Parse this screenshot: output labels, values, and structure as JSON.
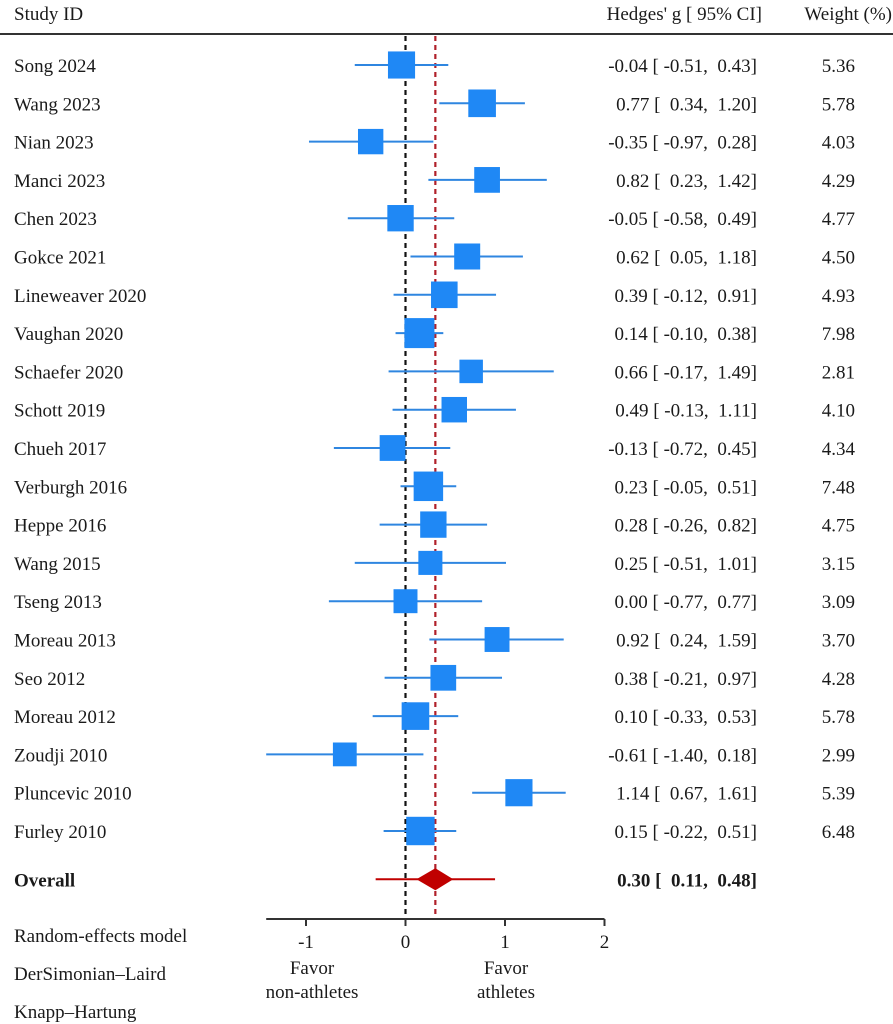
{
  "chart_data": {
    "type": "forest",
    "header": {
      "study": "Study ID",
      "effect": "Hedges' g [ 95% CI]",
      "weight": "Weight (%)"
    },
    "studies": [
      {
        "name": "Song 2024",
        "g": -0.04,
        "lo": -0.51,
        "hi": 0.43,
        "weight": 5.36,
        "label": "-0.04 [ -0.51,  0.43]",
        "weight_label": "5.36"
      },
      {
        "name": "Wang 2023",
        "g": 0.77,
        "lo": 0.34,
        "hi": 1.2,
        "weight": 5.78,
        "label": "0.77 [  0.34,  1.20]",
        "weight_label": "5.78"
      },
      {
        "name": "Nian 2023",
        "g": -0.35,
        "lo": -0.97,
        "hi": 0.28,
        "weight": 4.03,
        "label": "-0.35 [ -0.97,  0.28]",
        "weight_label": "4.03"
      },
      {
        "name": "Manci 2023",
        "g": 0.82,
        "lo": 0.23,
        "hi": 1.42,
        "weight": 4.29,
        "label": "0.82 [  0.23,  1.42]",
        "weight_label": "4.29"
      },
      {
        "name": "Chen 2023",
        "g": -0.05,
        "lo": -0.58,
        "hi": 0.49,
        "weight": 4.77,
        "label": "-0.05 [ -0.58,  0.49]",
        "weight_label": "4.77"
      },
      {
        "name": "Gokce 2021",
        "g": 0.62,
        "lo": 0.05,
        "hi": 1.18,
        "weight": 4.5,
        "label": "0.62 [  0.05,  1.18]",
        "weight_label": "4.50"
      },
      {
        "name": "Lineweaver 2020",
        "g": 0.39,
        "lo": -0.12,
        "hi": 0.91,
        "weight": 4.93,
        "label": "0.39 [ -0.12,  0.91]",
        "weight_label": "4.93"
      },
      {
        "name": "Vaughan 2020",
        "g": 0.14,
        "lo": -0.1,
        "hi": 0.38,
        "weight": 7.98,
        "label": "0.14 [ -0.10,  0.38]",
        "weight_label": "7.98"
      },
      {
        "name": "Schaefer 2020",
        "g": 0.66,
        "lo": -0.17,
        "hi": 1.49,
        "weight": 2.81,
        "label": "0.66 [ -0.17,  1.49]",
        "weight_label": "2.81"
      },
      {
        "name": "Schott 2019",
        "g": 0.49,
        "lo": -0.13,
        "hi": 1.11,
        "weight": 4.1,
        "label": "0.49 [ -0.13,  1.11]",
        "weight_label": "4.10"
      },
      {
        "name": "Chueh 2017",
        "g": -0.13,
        "lo": -0.72,
        "hi": 0.45,
        "weight": 4.34,
        "label": "-0.13 [ -0.72,  0.45]",
        "weight_label": "4.34"
      },
      {
        "name": "Verburgh 2016",
        "g": 0.23,
        "lo": -0.05,
        "hi": 0.51,
        "weight": 7.48,
        "label": "0.23 [ -0.05,  0.51]",
        "weight_label": "7.48"
      },
      {
        "name": "Heppe 2016",
        "g": 0.28,
        "lo": -0.26,
        "hi": 0.82,
        "weight": 4.75,
        "label": "0.28 [ -0.26,  0.82]",
        "weight_label": "4.75"
      },
      {
        "name": "Wang 2015",
        "g": 0.25,
        "lo": -0.51,
        "hi": 1.01,
        "weight": 3.15,
        "label": "0.25 [ -0.51,  1.01]",
        "weight_label": "3.15"
      },
      {
        "name": "Tseng 2013",
        "g": 0.0,
        "lo": -0.77,
        "hi": 0.77,
        "weight": 3.09,
        "label": "0.00 [ -0.77,  0.77]",
        "weight_label": "3.09"
      },
      {
        "name": "Moreau 2013",
        "g": 0.92,
        "lo": 0.24,
        "hi": 1.59,
        "weight": 3.7,
        "label": "0.92 [  0.24,  1.59]",
        "weight_label": "3.70"
      },
      {
        "name": "Seo 2012",
        "g": 0.38,
        "lo": -0.21,
        "hi": 0.97,
        "weight": 4.28,
        "label": "0.38 [ -0.21,  0.97]",
        "weight_label": "4.28"
      },
      {
        "name": "Moreau 2012",
        "g": 0.1,
        "lo": -0.33,
        "hi": 0.53,
        "weight": 5.78,
        "label": "0.10 [ -0.33,  0.53]",
        "weight_label": "5.78"
      },
      {
        "name": "Zoudji 2010",
        "g": -0.61,
        "lo": -1.4,
        "hi": 0.18,
        "weight": 2.99,
        "label": "-0.61 [ -1.40,  0.18]",
        "weight_label": "2.99"
      },
      {
        "name": "Pluncevic 2010",
        "g": 1.14,
        "lo": 0.67,
        "hi": 1.61,
        "weight": 5.39,
        "label": "1.14 [  0.67,  1.61]",
        "weight_label": "5.39"
      },
      {
        "name": "Furley 2010",
        "g": 0.15,
        "lo": -0.22,
        "hi": 0.51,
        "weight": 6.48,
        "label": "0.15 [ -0.22,  0.51]",
        "weight_label": "6.48"
      }
    ],
    "overall": {
      "name": "Overall",
      "g": 0.3,
      "lo": 0.11,
      "hi": 0.48,
      "pi_lo": -0.3,
      "pi_hi": 0.9,
      "label": "0.30 [  0.11,  0.48]"
    },
    "x_axis": {
      "range": [
        -1.4,
        2
      ],
      "ticks": [
        -1,
        0,
        1,
        2
      ],
      "tick_labels": [
        "-1",
        "0",
        "1",
        "2"
      ],
      "left_label": [
        "Favor",
        "non-athletes"
      ],
      "right_label": [
        "Favor",
        "athletes"
      ]
    },
    "reference_lines": {
      "null_effect": 0,
      "pooled_effect": 0.3
    },
    "footnotes": [
      "Random-effects model",
      "DerSimonian–Laird",
      "Knapp–Hartung"
    ],
    "colors": {
      "study_marker": "#1f88f5",
      "ci_line": "#2f86e0",
      "overall": "#c00000",
      "null_line": "#111111",
      "pooled_line": "#b0202a",
      "axis": "#333333"
    }
  }
}
